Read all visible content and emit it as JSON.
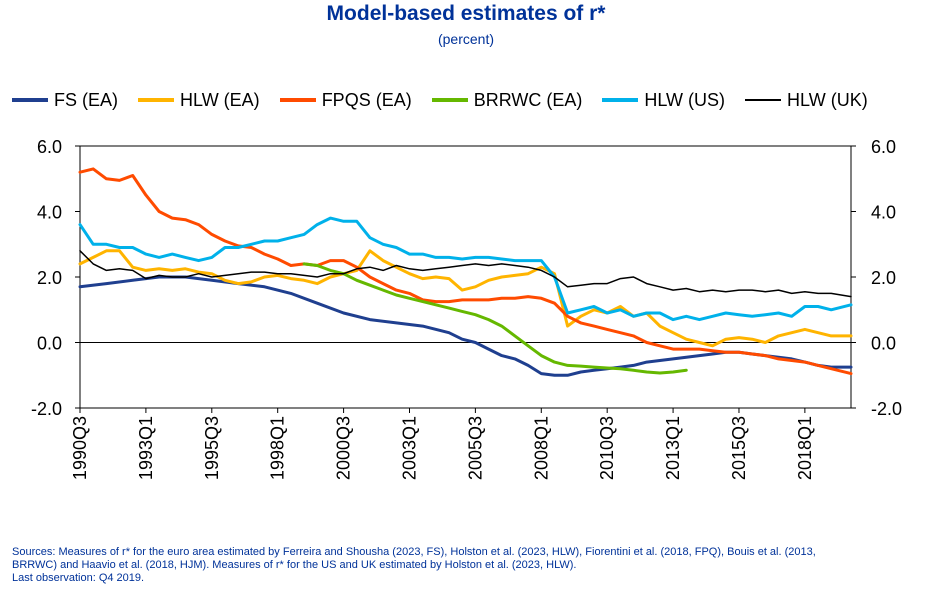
{
  "title": "Model-based estimates of r*",
  "subtitle": "(percent)",
  "footnote": {
    "line1": "Sources: Measures of r* for the euro area estimated by Ferreira and Shousha (2023, FS), Holston et al. (2023, HLW), Fiorentini et al. (2018, FPQ), Bouis et al. (2013,",
    "line2": "BRRWC) and Haavio et al. (2018, HJM). Measures of r* for the US and UK estimated by Holston et al. (2023, HLW).",
    "line3": "Last observation: Q4 2019."
  },
  "chart_data": {
    "type": "line",
    "title": "Model-based estimates of r*",
    "subtitle": "(percent)",
    "x_unit": "quarter",
    "x_range": [
      "1990Q3",
      "2019Q4"
    ],
    "x_tick_labels": [
      "1990Q3",
      "1993Q1",
      "1995Q3",
      "1998Q1",
      "2000Q3",
      "2003Q1",
      "2005Q3",
      "2008Q1",
      "2010Q3",
      "2013Q1",
      "2015Q3",
      "2018Q1"
    ],
    "y_ticks": [
      6.0,
      4.0,
      2.0,
      0.0,
      -2.0
    ],
    "y_tick_labels": [
      "6.0",
      "4.0",
      "2.0",
      "0.0",
      "-2.0"
    ],
    "ylim": [
      -2,
      6
    ],
    "dual_axis_labels": true,
    "grid": false,
    "legend_position": "top",
    "series": [
      {
        "name": "FS (EA)",
        "color": "#1f3f8f",
        "stroke": 3,
        "x": [
          "1990Q3",
          "1991Q3",
          "1992Q3",
          "1993Q3",
          "1994Q3",
          "1995Q3",
          "1996Q3",
          "1997Q3",
          "1998Q3",
          "1999Q3",
          "2000Q3",
          "2001Q3",
          "2002Q3",
          "2003Q3",
          "2004Q3",
          "2005Q1",
          "2005Q3",
          "2006Q1",
          "2006Q3",
          "2007Q1",
          "2007Q3",
          "2008Q1",
          "2008Q3",
          "2009Q1",
          "2009Q3",
          "2010Q1",
          "2010Q3",
          "2011Q1",
          "2011Q3",
          "2012Q1",
          "2012Q3",
          "2013Q1",
          "2013Q3",
          "2014Q1",
          "2014Q3",
          "2015Q1",
          "2015Q3",
          "2016Q1",
          "2016Q3",
          "2017Q1",
          "2017Q3",
          "2018Q1",
          "2018Q3",
          "2019Q1",
          "2019Q4"
        ],
        "y": [
          1.7,
          1.8,
          1.9,
          2.0,
          2.0,
          1.9,
          1.8,
          1.7,
          1.5,
          1.2,
          0.9,
          0.7,
          0.6,
          0.5,
          0.3,
          0.1,
          0.0,
          -0.2,
          -0.4,
          -0.5,
          -0.7,
          -0.95,
          -1.0,
          -1.0,
          -0.9,
          -0.85,
          -0.8,
          -0.75,
          -0.7,
          -0.6,
          -0.55,
          -0.5,
          -0.45,
          -0.4,
          -0.35,
          -0.3,
          -0.3,
          -0.35,
          -0.4,
          -0.45,
          -0.5,
          -0.6,
          -0.7,
          -0.75,
          -0.75
        ]
      },
      {
        "name": "HLW (EA)",
        "color": "#ffb400",
        "stroke": 3,
        "x": [
          "1990Q3",
          "1991Q1",
          "1991Q3",
          "1992Q1",
          "1992Q3",
          "1993Q1",
          "1993Q3",
          "1994Q1",
          "1994Q3",
          "1995Q1",
          "1995Q3",
          "1996Q1",
          "1996Q3",
          "1997Q1",
          "1997Q3",
          "1998Q1",
          "1998Q3",
          "1999Q1",
          "1999Q3",
          "2000Q1",
          "2000Q3",
          "2001Q1",
          "2001Q3",
          "2002Q1",
          "2002Q3",
          "2003Q1",
          "2003Q3",
          "2004Q1",
          "2004Q3",
          "2005Q1",
          "2005Q3",
          "2006Q1",
          "2006Q3",
          "2007Q1",
          "2007Q3",
          "2008Q1",
          "2008Q3",
          "2009Q1",
          "2009Q3",
          "2010Q1",
          "2010Q3",
          "2011Q1",
          "2011Q3",
          "2012Q1",
          "2012Q3",
          "2013Q1",
          "2013Q3",
          "2014Q1",
          "2014Q3",
          "2015Q1",
          "2015Q3",
          "2016Q1",
          "2016Q3",
          "2017Q1",
          "2017Q3",
          "2018Q1",
          "2018Q3",
          "2019Q1",
          "2019Q4"
        ],
        "y": [
          2.4,
          2.6,
          2.8,
          2.8,
          2.3,
          2.2,
          2.25,
          2.2,
          2.25,
          2.15,
          2.1,
          1.9,
          1.8,
          1.85,
          2.0,
          2.05,
          1.95,
          1.9,
          1.8,
          2.0,
          2.1,
          2.2,
          2.8,
          2.5,
          2.3,
          2.1,
          1.95,
          2.0,
          1.95,
          1.6,
          1.7,
          1.9,
          2.0,
          2.05,
          2.1,
          2.3,
          2.1,
          0.5,
          0.8,
          1.0,
          0.9,
          1.1,
          0.8,
          0.9,
          0.5,
          0.3,
          0.1,
          0.0,
          -0.1,
          0.1,
          0.15,
          0.1,
          0.0,
          0.2,
          0.3,
          0.4,
          0.3,
          0.2,
          0.2
        ]
      },
      {
        "name": "FPQS (EA)",
        "color": "#ff4b00",
        "stroke": 3,
        "x": [
          "1990Q3",
          "1991Q1",
          "1991Q3",
          "1992Q1",
          "1992Q3",
          "1993Q1",
          "1993Q3",
          "1994Q1",
          "1994Q3",
          "1995Q1",
          "1995Q3",
          "1996Q1",
          "1996Q3",
          "1997Q1",
          "1997Q3",
          "1998Q1",
          "1998Q3",
          "1999Q1",
          "1999Q3",
          "2000Q1",
          "2000Q3",
          "2001Q1",
          "2001Q3",
          "2002Q1",
          "2002Q3",
          "2003Q1",
          "2003Q3",
          "2004Q1",
          "2004Q3",
          "2005Q1",
          "2005Q3",
          "2006Q1",
          "2006Q3",
          "2007Q1",
          "2007Q3",
          "2008Q1",
          "2008Q3",
          "2009Q1",
          "2009Q3",
          "2010Q1",
          "2010Q3",
          "2011Q1",
          "2011Q3",
          "2012Q1",
          "2012Q3",
          "2013Q1",
          "2013Q3",
          "2014Q1",
          "2014Q3",
          "2015Q1",
          "2015Q3",
          "2016Q1",
          "2016Q3",
          "2017Q1",
          "2017Q3",
          "2018Q1",
          "2018Q3",
          "2019Q1",
          "2019Q4"
        ],
        "y": [
          5.2,
          5.3,
          5.0,
          4.95,
          5.1,
          4.5,
          4.0,
          3.8,
          3.75,
          3.6,
          3.3,
          3.1,
          2.95,
          2.9,
          2.7,
          2.55,
          2.35,
          2.4,
          2.35,
          2.5,
          2.5,
          2.3,
          2.0,
          1.8,
          1.6,
          1.5,
          1.3,
          1.25,
          1.25,
          1.3,
          1.3,
          1.3,
          1.35,
          1.35,
          1.4,
          1.35,
          1.2,
          0.8,
          0.6,
          0.5,
          0.4,
          0.3,
          0.2,
          0.0,
          -0.1,
          -0.2,
          -0.2,
          -0.2,
          -0.25,
          -0.3,
          -0.3,
          -0.35,
          -0.4,
          -0.5,
          -0.55,
          -0.6,
          -0.7,
          -0.8,
          -0.95
        ]
      },
      {
        "name": "BRRWC (EA)",
        "color": "#65b800",
        "stroke": 3,
        "x": [
          "1999Q1",
          "1999Q3",
          "2000Q1",
          "2000Q3",
          "2001Q1",
          "2001Q3",
          "2002Q1",
          "2002Q3",
          "2003Q1",
          "2003Q3",
          "2004Q1",
          "2004Q3",
          "2005Q1",
          "2005Q3",
          "2006Q1",
          "2006Q3",
          "2007Q1",
          "2007Q3",
          "2008Q1",
          "2008Q3",
          "2009Q1",
          "2009Q3",
          "2010Q1",
          "2010Q3",
          "2011Q1",
          "2011Q3",
          "2012Q1",
          "2012Q3",
          "2013Q1",
          "2013Q3"
        ],
        "y": [
          2.4,
          2.35,
          2.2,
          2.1,
          1.9,
          1.75,
          1.6,
          1.45,
          1.35,
          1.25,
          1.15,
          1.05,
          0.95,
          0.85,
          0.7,
          0.5,
          0.2,
          -0.1,
          -0.4,
          -0.6,
          -0.7,
          -0.72,
          -0.75,
          -0.78,
          -0.8,
          -0.85,
          -0.9,
          -0.93,
          -0.9,
          -0.85
        ]
      },
      {
        "name": "HLW (US)",
        "color": "#00b1ea",
        "stroke": 3,
        "x": [
          "1990Q3",
          "1991Q1",
          "1991Q3",
          "1992Q1",
          "1992Q3",
          "1993Q1",
          "1993Q3",
          "1994Q1",
          "1994Q3",
          "1995Q1",
          "1995Q3",
          "1996Q1",
          "1996Q3",
          "1997Q1",
          "1997Q3",
          "1998Q1",
          "1998Q3",
          "1999Q1",
          "1999Q3",
          "2000Q1",
          "2000Q3",
          "2001Q1",
          "2001Q3",
          "2002Q1",
          "2002Q3",
          "2003Q1",
          "2003Q3",
          "2004Q1",
          "2004Q3",
          "2005Q1",
          "2005Q3",
          "2006Q1",
          "2006Q3",
          "2007Q1",
          "2007Q3",
          "2008Q1",
          "2008Q3",
          "2009Q1",
          "2009Q3",
          "2010Q1",
          "2010Q3",
          "2011Q1",
          "2011Q3",
          "2012Q1",
          "2012Q3",
          "2013Q1",
          "2013Q3",
          "2014Q1",
          "2014Q3",
          "2015Q1",
          "2015Q3",
          "2016Q1",
          "2016Q3",
          "2017Q1",
          "2017Q3",
          "2018Q1",
          "2018Q3",
          "2019Q1",
          "2019Q4"
        ],
        "y": [
          3.6,
          3.0,
          3.0,
          2.9,
          2.9,
          2.7,
          2.6,
          2.7,
          2.6,
          2.5,
          2.6,
          2.9,
          2.9,
          3.0,
          3.1,
          3.1,
          3.2,
          3.3,
          3.6,
          3.8,
          3.7,
          3.7,
          3.2,
          3.0,
          2.9,
          2.7,
          2.7,
          2.6,
          2.6,
          2.55,
          2.6,
          2.6,
          2.55,
          2.5,
          2.5,
          2.5,
          2.0,
          0.9,
          1.0,
          1.1,
          0.9,
          1.0,
          0.8,
          0.9,
          0.9,
          0.7,
          0.8,
          0.7,
          0.8,
          0.9,
          0.85,
          0.8,
          0.85,
          0.9,
          0.8,
          1.1,
          1.1,
          1.0,
          1.15
        ]
      },
      {
        "name": "HLW (UK)",
        "color": "#000000",
        "stroke": 1.5,
        "x": [
          "1990Q3",
          "1991Q1",
          "1991Q3",
          "1992Q1",
          "1992Q3",
          "1993Q1",
          "1993Q3",
          "1994Q1",
          "1994Q3",
          "1995Q1",
          "1995Q3",
          "1996Q1",
          "1996Q3",
          "1997Q1",
          "1997Q3",
          "1998Q1",
          "1998Q3",
          "1999Q1",
          "1999Q3",
          "2000Q1",
          "2000Q3",
          "2001Q1",
          "2001Q3",
          "2002Q1",
          "2002Q3",
          "2003Q1",
          "2003Q3",
          "2004Q1",
          "2004Q3",
          "2005Q1",
          "2005Q3",
          "2006Q1",
          "2006Q3",
          "2007Q1",
          "2007Q3",
          "2008Q1",
          "2008Q3",
          "2009Q1",
          "2009Q3",
          "2010Q1",
          "2010Q3",
          "2011Q1",
          "2011Q3",
          "2012Q1",
          "2012Q3",
          "2013Q1",
          "2013Q3",
          "2014Q1",
          "2014Q3",
          "2015Q1",
          "2015Q3",
          "2016Q1",
          "2016Q3",
          "2017Q1",
          "2017Q3",
          "2018Q1",
          "2018Q3",
          "2019Q1",
          "2019Q4"
        ],
        "y": [
          2.8,
          2.4,
          2.2,
          2.25,
          2.2,
          1.95,
          2.05,
          2.0,
          2.0,
          2.1,
          2.0,
          2.05,
          2.1,
          2.15,
          2.15,
          2.1,
          2.1,
          2.05,
          2.0,
          2.1,
          2.1,
          2.25,
          2.3,
          2.2,
          2.35,
          2.25,
          2.2,
          2.25,
          2.3,
          2.35,
          2.4,
          2.35,
          2.4,
          2.35,
          2.3,
          2.2,
          2.0,
          1.7,
          1.75,
          1.8,
          1.8,
          1.95,
          2.0,
          1.8,
          1.7,
          1.6,
          1.65,
          1.55,
          1.6,
          1.55,
          1.6,
          1.6,
          1.55,
          1.6,
          1.5,
          1.55,
          1.5,
          1.5,
          1.4
        ]
      }
    ]
  }
}
